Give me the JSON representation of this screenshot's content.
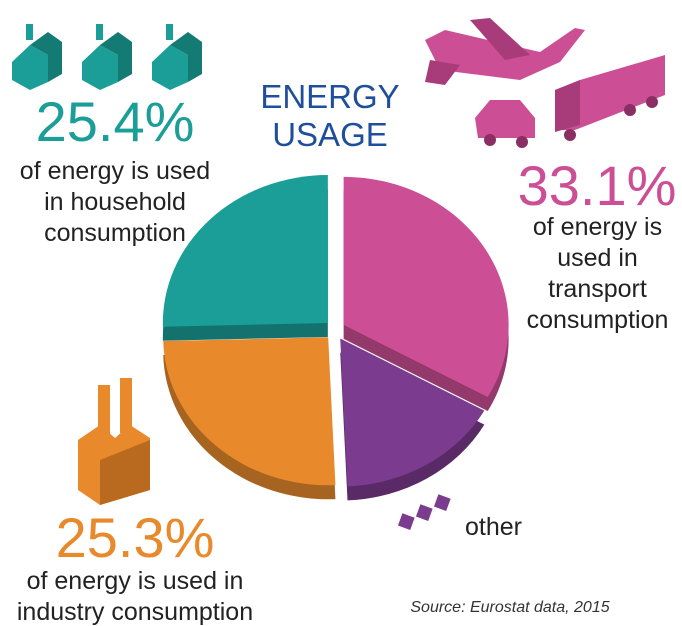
{
  "chart_data": {
    "type": "pie",
    "title": "ENERGY USAGE",
    "categories": [
      "of energy is used in household consumption",
      "of energy is used in transport consumption",
      "other",
      "of energy is used in industry consumption"
    ],
    "values": [
      25.4,
      33.1,
      16.2,
      25.3
    ],
    "value_labels": [
      "25.4%",
      "33.1%",
      null,
      "25.3%"
    ],
    "colors": [
      "#1a9e97",
      "#cc4f96",
      "#7b3b8e",
      "#e88a2c"
    ],
    "source": "Source: Eurostat data, 2015"
  }
}
